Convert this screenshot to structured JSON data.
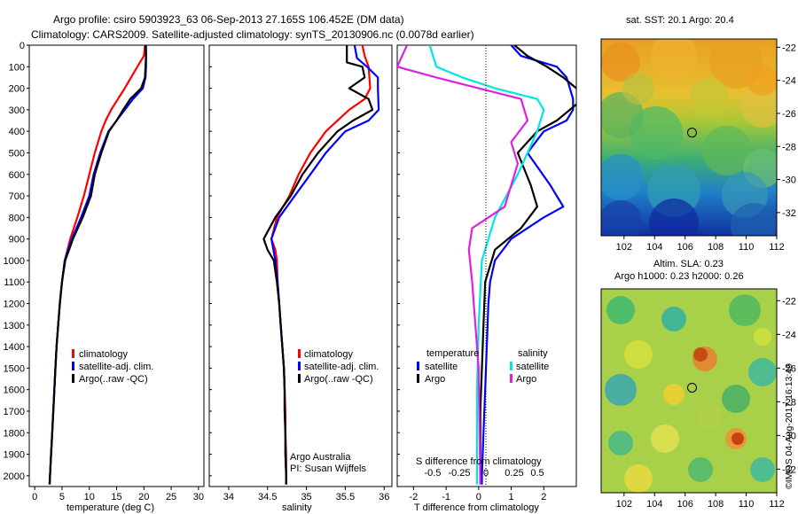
{
  "title_line1": "Argo profile: csiro 5903923_63 06-Sep-2013 27.165S 106.452E (DM data)",
  "title_line2": "Climatology: CARS2009. Satellite-adjusted climatology: synTS_20130906.nc (0.0078d earlier)",
  "footer_credit": "©IMOS 04-Aug-2017 16:13:49",
  "colors": {
    "climatology": "#ff0000",
    "satellite": "#0000ff",
    "argo": "#000000",
    "s_satellite": "#00e5e5",
    "s_argo": "#e020e0"
  },
  "chart_data": [
    {
      "type": "line",
      "name": "temperature",
      "xlabel": "temperature (deg C)",
      "xlim": [
        -1,
        31
      ],
      "xticks": [
        0,
        5,
        10,
        15,
        20,
        25,
        30
      ],
      "ylim": [
        2050,
        0
      ],
      "yticks": [
        0,
        100,
        200,
        300,
        400,
        500,
        600,
        700,
        800,
        900,
        1000,
        1100,
        1200,
        1300,
        1400,
        1500,
        1600,
        1700,
        1800,
        1900,
        2000
      ],
      "legend": [
        "climatology",
        "satellite-adj. clim.",
        "Argo(..raw -QC)"
      ],
      "series": [
        {
          "key": "climatology",
          "color": "#ff0000",
          "points": [
            [
              20.2,
              0
            ],
            [
              20.0,
              50
            ],
            [
              18.8,
              100
            ],
            [
              16.5,
              200
            ],
            [
              14.0,
              300
            ],
            [
              13.0,
              350
            ],
            [
              12.2,
              400
            ],
            [
              11.0,
              500
            ],
            [
              10.0,
              600
            ],
            [
              9.0,
              700
            ],
            [
              7.8,
              800
            ],
            [
              6.5,
              900
            ],
            [
              5.5,
              1000
            ],
            [
              5.0,
              1100
            ],
            [
              4.6,
              1200
            ],
            [
              4.3,
              1300
            ],
            [
              4.0,
              1400
            ],
            [
              3.8,
              1500
            ],
            [
              3.6,
              1600
            ],
            [
              3.4,
              1700
            ],
            [
              3.2,
              1800
            ],
            [
              3.0,
              1900
            ],
            [
              2.8,
              2000
            ],
            [
              2.7,
              2040
            ]
          ]
        },
        {
          "key": "satellite",
          "color": "#0000ff",
          "points": [
            [
              20.4,
              0
            ],
            [
              20.4,
              50
            ],
            [
              20.4,
              100
            ],
            [
              20.3,
              150
            ],
            [
              19.8,
              200
            ],
            [
              18.0,
              250
            ],
            [
              16.5,
              300
            ],
            [
              15.0,
              350
            ],
            [
              13.5,
              400
            ],
            [
              12.0,
              500
            ],
            [
              10.8,
              600
            ],
            [
              10.0,
              700
            ],
            [
              8.5,
              800
            ],
            [
              6.8,
              900
            ],
            [
              5.5,
              1000
            ],
            [
              5.0,
              1100
            ],
            [
              4.6,
              1200
            ],
            [
              4.3,
              1300
            ],
            [
              4.0,
              1400
            ],
            [
              3.8,
              1500
            ],
            [
              3.6,
              1600
            ],
            [
              3.4,
              1700
            ],
            [
              3.2,
              1800
            ],
            [
              3.0,
              1900
            ],
            [
              2.8,
              2000
            ],
            [
              2.7,
              2040
            ]
          ]
        },
        {
          "key": "argo",
          "color": "#000000",
          "points": [
            [
              20.3,
              0
            ],
            [
              20.4,
              50
            ],
            [
              20.3,
              100
            ],
            [
              20.2,
              150
            ],
            [
              19.5,
              200
            ],
            [
              17.5,
              250
            ],
            [
              16.2,
              300
            ],
            [
              15.0,
              350
            ],
            [
              13.6,
              400
            ],
            [
              12.2,
              500
            ],
            [
              11.0,
              600
            ],
            [
              10.3,
              700
            ],
            [
              8.8,
              800
            ],
            [
              7.0,
              900
            ],
            [
              5.6,
              1000
            ],
            [
              5.0,
              1100
            ],
            [
              4.6,
              1200
            ],
            [
              4.3,
              1300
            ],
            [
              4.0,
              1400
            ],
            [
              3.8,
              1500
            ],
            [
              3.6,
              1600
            ],
            [
              3.4,
              1700
            ],
            [
              3.2,
              1800
            ],
            [
              3.0,
              1900
            ],
            [
              2.8,
              2000
            ],
            [
              2.75,
              2040
            ]
          ]
        }
      ]
    },
    {
      "type": "line",
      "name": "salinity",
      "xlabel": "salinity",
      "xlim": [
        33.75,
        36.1
      ],
      "xticks": [
        34,
        34.5,
        35,
        35.5,
        36
      ],
      "xticklabels": [
        "34",
        "34.5",
        "35",
        "35.5",
        "36"
      ],
      "ylim": [
        2050,
        0
      ],
      "legend": [
        "climatology",
        "satellite-adj. clim.",
        "Argo(..raw -QC)"
      ],
      "annotation": [
        "Argo Australia",
        "PI: Susan Wijffels"
      ],
      "series": [
        {
          "key": "climatology",
          "color": "#ff0000",
          "points": [
            [
              35.72,
              0
            ],
            [
              35.75,
              50
            ],
            [
              35.8,
              100
            ],
            [
              35.82,
              200
            ],
            [
              35.75,
              250
            ],
            [
              35.55,
              300
            ],
            [
              35.25,
              400
            ],
            [
              35.05,
              500
            ],
            [
              34.9,
              600
            ],
            [
              34.78,
              700
            ],
            [
              34.62,
              800
            ],
            [
              34.55,
              900
            ],
            [
              34.6,
              950
            ],
            [
              34.62,
              1000
            ],
            [
              34.63,
              1100
            ],
            [
              34.65,
              1200
            ],
            [
              34.67,
              1300
            ],
            [
              34.69,
              1400
            ],
            [
              34.71,
              1500
            ],
            [
              34.72,
              1600
            ],
            [
              34.73,
              1700
            ],
            [
              34.73,
              1800
            ],
            [
              34.74,
              1900
            ],
            [
              34.74,
              2000
            ],
            [
              34.74,
              2040
            ]
          ]
        },
        {
          "key": "satellite",
          "color": "#0000ff",
          "points": [
            [
              35.62,
              0
            ],
            [
              35.65,
              60
            ],
            [
              35.78,
              100
            ],
            [
              35.92,
              150
            ],
            [
              35.92,
              200
            ],
            [
              35.93,
              300
            ],
            [
              35.8,
              350
            ],
            [
              35.5,
              400
            ],
            [
              35.25,
              500
            ],
            [
              35.05,
              600
            ],
            [
              34.85,
              700
            ],
            [
              34.65,
              800
            ],
            [
              34.55,
              900
            ],
            [
              34.6,
              1000
            ],
            [
              34.63,
              1100
            ],
            [
              34.65,
              1200
            ],
            [
              34.67,
              1300
            ],
            [
              34.69,
              1400
            ],
            [
              34.71,
              1500
            ],
            [
              34.72,
              1600
            ],
            [
              34.72,
              1700
            ],
            [
              34.73,
              1800
            ],
            [
              34.73,
              1900
            ],
            [
              34.74,
              2000
            ],
            [
              34.74,
              2040
            ]
          ]
        },
        {
          "key": "argo",
          "color": "#000000",
          "points": [
            [
              35.52,
              0
            ],
            [
              35.52,
              80
            ],
            [
              35.72,
              100
            ],
            [
              35.75,
              150
            ],
            [
              35.55,
              200
            ],
            [
              35.8,
              250
            ],
            [
              35.85,
              300
            ],
            [
              35.6,
              350
            ],
            [
              35.4,
              400
            ],
            [
              35.15,
              500
            ],
            [
              34.95,
              600
            ],
            [
              34.8,
              700
            ],
            [
              34.6,
              800
            ],
            [
              34.45,
              900
            ],
            [
              34.5,
              950
            ],
            [
              34.58,
              1000
            ],
            [
              34.62,
              1100
            ],
            [
              34.65,
              1200
            ],
            [
              34.67,
              1300
            ],
            [
              34.69,
              1400
            ],
            [
              34.71,
              1500
            ],
            [
              34.72,
              1600
            ],
            [
              34.72,
              1700
            ],
            [
              34.73,
              1800
            ],
            [
              34.73,
              1900
            ],
            [
              34.74,
              2000
            ],
            [
              34.74,
              2040
            ]
          ]
        }
      ]
    },
    {
      "type": "line",
      "name": "differences",
      "xlabel": "T difference from climatology",
      "xlim": [
        -2.5,
        3.0
      ],
      "xticks": [
        -2,
        -1,
        0,
        1,
        2
      ],
      "top_xlabel": "S difference from climatology",
      "top_xticklabels": [
        "-0.5",
        "-0.25",
        "0",
        "0.25",
        "0.5"
      ],
      "ylim": [
        2050,
        0
      ],
      "legend_temperature": "temperature",
      "legend_salinity": "salinity",
      "legend_labels": [
        "satellite",
        "Argo",
        "satellite",
        "Argo"
      ],
      "series": [
        {
          "key": "t_satellite",
          "color": "#0000ff",
          "points": [
            [
              1.0,
              0
            ],
            [
              1.3,
              50
            ],
            [
              2.4,
              100
            ],
            [
              2.7,
              150
            ],
            [
              2.8,
              200
            ],
            [
              2.9,
              250
            ],
            [
              2.9,
              300
            ],
            [
              2.7,
              350
            ],
            [
              2.0,
              400
            ],
            [
              1.5,
              500
            ],
            [
              2.2,
              650
            ],
            [
              2.6,
              750
            ],
            [
              2.0,
              800
            ],
            [
              1.0,
              900
            ],
            [
              0.5,
              1000
            ],
            [
              0.35,
              1100
            ],
            [
              0.3,
              1200
            ],
            [
              0.25,
              1400
            ],
            [
              0.2,
              1600
            ],
            [
              0.15,
              1800
            ],
            [
              0.1,
              2000
            ],
            [
              0.1,
              2040
            ]
          ]
        },
        {
          "key": "t_argo",
          "color": "#000000",
          "points": [
            [
              1.1,
              0
            ],
            [
              1.5,
              50
            ],
            [
              2.1,
              100
            ],
            [
              2.6,
              150
            ],
            [
              3.0,
              200
            ],
            [
              3.2,
              250
            ],
            [
              2.8,
              300
            ],
            [
              2.4,
              350
            ],
            [
              1.8,
              400
            ],
            [
              1.2,
              500
            ],
            [
              1.6,
              650
            ],
            [
              1.8,
              750
            ],
            [
              1.3,
              850
            ],
            [
              0.5,
              950
            ],
            [
              0.2,
              1100
            ],
            [
              0.15,
              1300
            ],
            [
              0.1,
              1500
            ],
            [
              0.05,
              1700
            ],
            [
              0.05,
              2000
            ],
            [
              0.05,
              2040
            ]
          ]
        },
        {
          "key": "s_satellite",
          "color": "#00e5e5",
          "points": [
            [
              -1.5,
              0
            ],
            [
              -1.3,
              100
            ],
            [
              -0.5,
              150
            ],
            [
              0.5,
              200
            ],
            [
              1.8,
              250
            ],
            [
              2.0,
              300
            ],
            [
              1.8,
              400
            ],
            [
              1.2,
              600
            ],
            [
              0.5,
              800
            ],
            [
              0.1,
              1000
            ],
            [
              0.0,
              1300
            ],
            [
              -0.05,
              1600
            ],
            [
              -0.05,
              2040
            ]
          ]
        },
        {
          "key": "s_argo",
          "color": "#e020e0",
          "points": [
            [
              -2.2,
              0
            ],
            [
              -2.5,
              100
            ],
            [
              -1.3,
              150
            ],
            [
              0.0,
              200
            ],
            [
              1.3,
              250
            ],
            [
              1.5,
              350
            ],
            [
              1.0,
              450
            ],
            [
              1.2,
              550
            ],
            [
              0.8,
              750
            ],
            [
              -0.2,
              850
            ],
            [
              -0.3,
              950
            ],
            [
              -0.2,
              1100
            ],
            [
              0.0,
              1500
            ],
            [
              0.05,
              2040
            ]
          ]
        }
      ]
    },
    {
      "type": "heatmap",
      "name": "sst_map",
      "title": "sat. SST: 20.1 Argo: 20.4",
      "xticks": [
        102,
        104,
        106,
        108,
        110,
        112
      ],
      "yticks": [
        -22,
        -24,
        -26,
        -28,
        -30,
        -32
      ],
      "marker": [
        106.452,
        -27.165
      ]
    },
    {
      "type": "heatmap",
      "name": "sla_map",
      "title_line1": "Altim. SLA: 0.23",
      "title_line2": "Argo h1000: 0.23 h2000: 0.26",
      "xticks": [
        102,
        104,
        106,
        108,
        110,
        112
      ],
      "yticks": [
        -22,
        -24,
        -26,
        -28,
        -30,
        -32
      ],
      "marker": [
        106.452,
        -27.165
      ]
    }
  ]
}
